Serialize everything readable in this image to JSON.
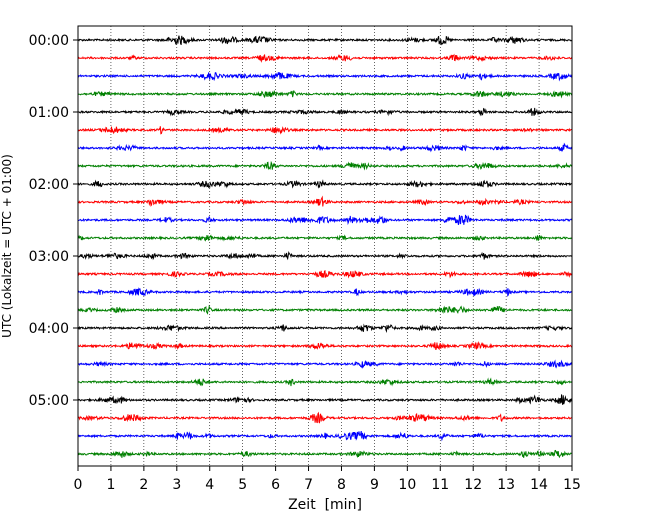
{
  "chart_data": {
    "type": "line",
    "title": "",
    "xlabel": "Zeit  [min]",
    "ylabel": "UTC (Lokalzeit = UTC + 01:00)",
    "xlim": [
      0,
      15
    ],
    "x_ticks": [
      "0",
      "1",
      "2",
      "3",
      "4",
      "5",
      "6",
      "7",
      "8",
      "9",
      "10",
      "11",
      "12",
      "13",
      "14",
      "15"
    ],
    "y_tick_labels": [
      "00:00",
      "01:00",
      "02:00",
      "03:00",
      "04:00",
      "05:00"
    ],
    "trace_interval_min": 15,
    "trace_count": 24,
    "trace_colors": [
      "#000000",
      "#ff0000",
      "#0000ff",
      "#008000"
    ],
    "grid": "vertical dotted",
    "legend": "none",
    "traces": [
      {
        "start": "00:00",
        "color": "#000000"
      },
      {
        "start": "00:15",
        "color": "#ff0000"
      },
      {
        "start": "00:30",
        "color": "#0000ff"
      },
      {
        "start": "00:45",
        "color": "#008000"
      },
      {
        "start": "01:00",
        "color": "#000000"
      },
      {
        "start": "01:15",
        "color": "#ff0000"
      },
      {
        "start": "01:30",
        "color": "#0000ff"
      },
      {
        "start": "01:45",
        "color": "#008000"
      },
      {
        "start": "02:00",
        "color": "#000000"
      },
      {
        "start": "02:15",
        "color": "#ff0000"
      },
      {
        "start": "02:30",
        "color": "#0000ff"
      },
      {
        "start": "02:45",
        "color": "#008000"
      },
      {
        "start": "03:00",
        "color": "#000000"
      },
      {
        "start": "03:15",
        "color": "#ff0000"
      },
      {
        "start": "03:30",
        "color": "#0000ff"
      },
      {
        "start": "03:45",
        "color": "#008000"
      },
      {
        "start": "04:00",
        "color": "#000000"
      },
      {
        "start": "04:15",
        "color": "#ff0000"
      },
      {
        "start": "04:30",
        "color": "#0000ff"
      },
      {
        "start": "04:45",
        "color": "#008000"
      },
      {
        "start": "05:00",
        "color": "#000000"
      },
      {
        "start": "05:15",
        "color": "#ff0000"
      },
      {
        "start": "05:30",
        "color": "#0000ff"
      },
      {
        "start": "05:45",
        "color": "#008000"
      }
    ]
  }
}
